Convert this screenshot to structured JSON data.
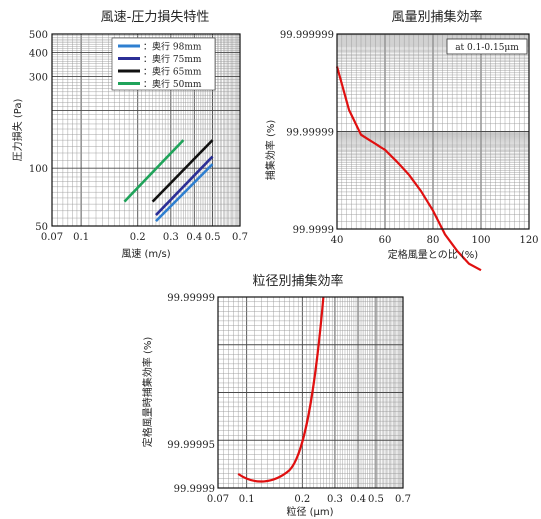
{
  "chart_data": [
    {
      "type": "line",
      "title": "風速-圧力損失特性",
      "xlabel": "風速 (m/s)",
      "ylabel": "圧力損失 (Pa)",
      "x_scale": "log",
      "y_scale": "log",
      "xlim": [
        0.07,
        0.7
      ],
      "ylim": [
        50,
        500
      ],
      "x_ticks": [
        "0.07",
        "0.1",
        "0.2",
        "0.3",
        "0.4",
        "0.5",
        "0.7"
      ],
      "y_ticks": [
        "50",
        "100",
        "300",
        "400",
        "500"
      ],
      "grid": true,
      "legend_position": "top-center",
      "series": [
        {
          "name": "奥行 98mm",
          "color": "#2e7fd0",
          "x": [
            0.25,
            0.5
          ],
          "y": [
            53,
            105
          ]
        },
        {
          "name": "奥行 75mm",
          "color": "#2b2f96",
          "x": [
            0.25,
            0.5
          ],
          "y": [
            57,
            115
          ]
        },
        {
          "name": "奥行 65mm",
          "color": "#111111",
          "x": [
            0.24,
            0.5
          ],
          "y": [
            67,
            140
          ]
        },
        {
          "name": "奥行 50mm",
          "color": "#1fa35a",
          "x": [
            0.17,
            0.35
          ],
          "y": [
            67,
            140
          ]
        }
      ]
    },
    {
      "type": "line",
      "title": "風量別捕集効率",
      "xlabel": "定格風量との比 (%)",
      "ylabel": "捕集効率 (%)",
      "annotation": "at 0.1-0.15μm",
      "xlim": [
        40,
        120
      ],
      "x_ticks": [
        "40",
        "60",
        "80",
        "100",
        "120"
      ],
      "y_ticks": [
        "99.9999",
        "99.99999",
        "99.999999"
      ],
      "grid": true,
      "series": [
        {
          "color": "#e01010",
          "x": [
            40,
            45,
            50,
            55,
            60,
            65,
            70,
            75,
            80,
            85,
            90,
            95,
            100
          ],
          "y": [
            99.999996,
            99.999992,
            99.999987,
            99.99998,
            99.999973,
            99.999962,
            99.99995,
            99.999935,
            99.999917,
            99.999895,
            99.99988,
            99.999868,
            99.999862
          ]
        }
      ]
    },
    {
      "type": "line",
      "title": "粒径別捕集効率",
      "xlabel": "粒径 (μm)",
      "ylabel": "定格風量時捕集効率 (%)",
      "x_scale": "log",
      "xlim": [
        0.07,
        0.7
      ],
      "x_ticks": [
        "0.07",
        "0.1",
        "0.2",
        "0.3",
        "0.4",
        "0.5",
        "0.7"
      ],
      "y_ticks": [
        "99.9999",
        "99.99995",
        "99.99999"
      ],
      "grid": true,
      "series": [
        {
          "color": "#e01010",
          "x": [
            0.09,
            0.1,
            0.11,
            0.12,
            0.14,
            0.16,
            0.18,
            0.2,
            0.22,
            0.24,
            0.26
          ],
          "y": [
            99.999916,
            99.999913,
            99.999908,
            99.999906,
            99.99991,
            99.999918,
            99.999932,
            99.999955,
            99.999985,
            99.99995,
            99.99999
          ]
        }
      ]
    }
  ]
}
